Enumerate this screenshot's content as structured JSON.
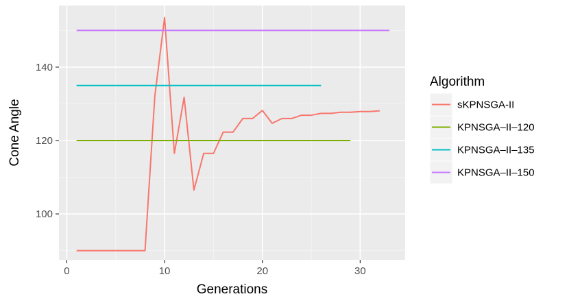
{
  "chart_data": {
    "type": "line",
    "xlabel": "Generations",
    "ylabel": "Cone Angle",
    "xlim": [
      -0.8,
      34.6
    ],
    "ylim": [
      87.5,
      156.8
    ],
    "x_ticks": [
      0,
      10,
      20,
      30
    ],
    "y_ticks": [
      100,
      120,
      140
    ],
    "x_minor_ticks": [
      5,
      15,
      25
    ],
    "y_minor_ticks": [
      90,
      110,
      130,
      150
    ],
    "grid": true,
    "legend": {
      "title": "Algorithm",
      "position": "right"
    },
    "series": [
      {
        "name": "sKPNSGA-II",
        "color": "#F8766D",
        "x": [
          1,
          2,
          3,
          4,
          5,
          6,
          7,
          8,
          9,
          10,
          11,
          12,
          13,
          14,
          15,
          16,
          17,
          18,
          19,
          20,
          21,
          22,
          23,
          24,
          25,
          26,
          27,
          28,
          29,
          30,
          31,
          32
        ],
        "y": [
          90,
          90,
          90,
          90,
          90,
          90,
          90,
          90,
          132,
          153.5,
          116.5,
          131.8,
          106.5,
          116.5,
          116.5,
          122.3,
          122.3,
          126,
          126,
          128.2,
          124.7,
          126,
          126,
          126.9,
          126.9,
          127.4,
          127.4,
          127.7,
          127.7,
          127.9,
          127.9,
          128.1
        ]
      },
      {
        "name": "KPNSGA–II–120",
        "color": "#7CAE00",
        "x": [
          1,
          29
        ],
        "y": [
          120,
          120
        ]
      },
      {
        "name": "KPNSGA–II–135",
        "color": "#00BFC4",
        "x": [
          1,
          26
        ],
        "y": [
          135,
          135
        ]
      },
      {
        "name": "KPNSGA–II–150",
        "color": "#C77CFF",
        "x": [
          1,
          33
        ],
        "y": [
          150,
          150
        ]
      }
    ]
  },
  "colors": {
    "panel_background": "#EBEBEB",
    "major_grid": "#FFFFFF",
    "minor_grid": "#F5F5F5",
    "legend_key_background": "#F2F2F2",
    "tick_text": "#4D4D4D",
    "tick_mark": "#333333"
  }
}
